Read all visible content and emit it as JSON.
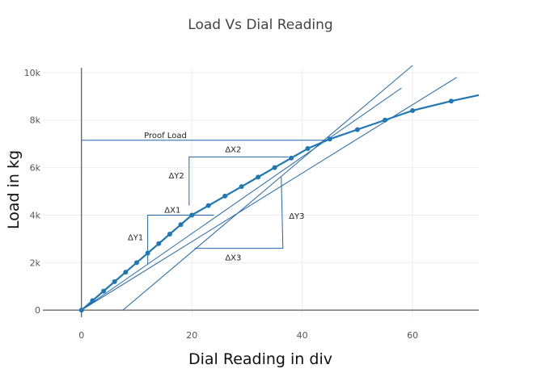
{
  "chart_data": {
    "type": "line",
    "title": "Load Vs Dial Reading",
    "xlabel": "Dial Reading in div",
    "ylabel": "Load in kg",
    "xlim": [
      -7,
      72
    ],
    "ylim": [
      -300,
      10200
    ],
    "x_ticks": [
      0,
      20,
      40,
      60
    ],
    "y_ticks": [
      0,
      2000,
      4000,
      6000,
      8000,
      10000
    ],
    "y_tick_labels": [
      "0",
      "2k",
      "4k",
      "6k",
      "8k",
      "10k"
    ],
    "grid": true,
    "colors": {
      "series": "#1f77b4",
      "lines": "#1f66b0",
      "grid": "#eeeeee"
    },
    "series": [
      {
        "x": [
          0,
          2,
          4,
          6,
          8,
          10,
          12,
          14,
          16,
          18,
          20,
          23,
          26,
          29,
          32,
          35,
          38,
          41,
          45,
          50,
          55,
          60,
          67,
          72
        ],
        "y": [
          0,
          400,
          800,
          1200,
          1600,
          2000,
          2400,
          2800,
          3200,
          3600,
          4000,
          4400,
          4800,
          5200,
          5600,
          6000,
          6400,
          6800,
          7200,
          7600,
          8000,
          8400,
          8800,
          9050
        ],
        "markers": true
      }
    ],
    "reference_lines": [
      {
        "x": [
          0,
          44.5
        ],
        "y": [
          7150,
          7150
        ]
      },
      {
        "x": [
          7.5,
          60
        ],
        "y": [
          0,
          10300
        ]
      },
      {
        "x": [
          0,
          58
        ],
        "y": [
          0,
          9350
        ]
      },
      {
        "x": [
          0,
          68
        ],
        "y": [
          0,
          9800
        ]
      },
      {
        "x": [
          12,
          12,
          24
        ],
        "y": [
          1950,
          4000,
          4000
        ]
      },
      {
        "x": [
          19.5,
          19.5,
          37.5
        ],
        "y": [
          4400,
          6450,
          6450
        ]
      },
      {
        "x": [
          20.5,
          36.5,
          36.2
        ],
        "y": [
          2600,
          2600,
          5600
        ]
      }
    ],
    "annotations": [
      {
        "text": "Proof Load",
        "x": 15.2,
        "y": 7350
      },
      {
        "text": "ΔX2",
        "x": 27.5,
        "y": 6750
      },
      {
        "text": "ΔY2",
        "x": 17.2,
        "y": 5650
      },
      {
        "text": "ΔX1",
        "x": 16.5,
        "y": 4200
      },
      {
        "text": "ΔY1",
        "x": 9.8,
        "y": 3050
      },
      {
        "text": "ΔY3",
        "x": 39,
        "y": 3950
      },
      {
        "text": "ΔX3",
        "x": 27.5,
        "y": 2200
      }
    ]
  }
}
